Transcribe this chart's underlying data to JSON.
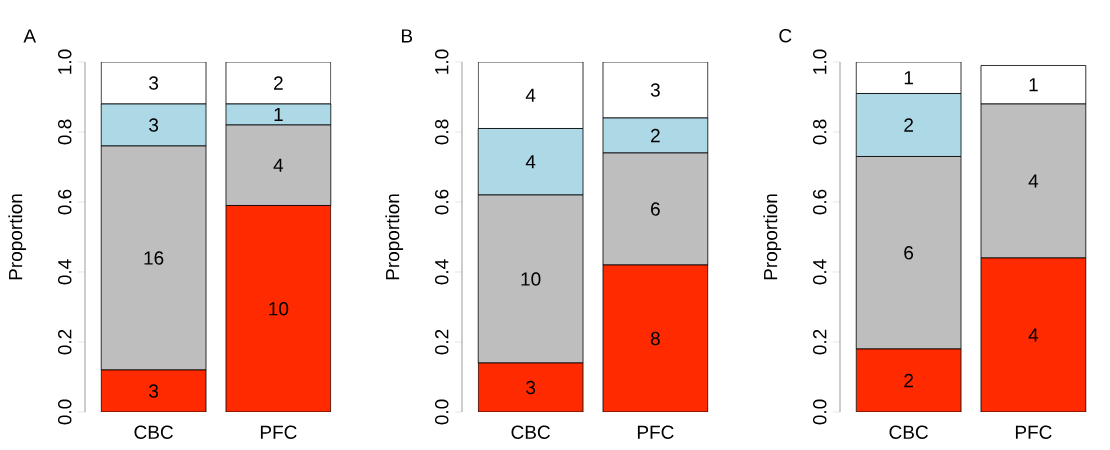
{
  "chart_data": [
    {
      "type": "bar",
      "title": "A",
      "ylabel": "Proportion",
      "categories": [
        "CBC",
        "PFC"
      ],
      "stacked": true,
      "ylim": [
        0,
        1
      ],
      "yticks": [
        {
          "value": 0,
          "label": "0.0"
        },
        {
          "value": 0.2,
          "label": "0.2"
        },
        {
          "value": 0.4,
          "label": "0.4"
        },
        {
          "value": 0.6,
          "label": "0.6"
        },
        {
          "value": 0.8,
          "label": "0.8"
        },
        {
          "value": 1,
          "label": "1.0"
        }
      ],
      "series": [
        {
          "color": "#ff2a00",
          "values": [
            0.12,
            0.59
          ]
        },
        {
          "color": "#bebebe",
          "values": [
            0.64,
            0.23
          ]
        },
        {
          "color": "#add8e6",
          "values": [
            0.12,
            0.06
          ]
        },
        {
          "color": "#ffffff",
          "values": [
            0.12,
            0.12
          ]
        }
      ],
      "annotations": [
        "3",
        "16",
        "3",
        "3",
        "10",
        "4",
        "1",
        "2"
      ]
    },
    {
      "type": "bar",
      "title": "B",
      "ylabel": "Proportion",
      "categories": [
        "CBC",
        "PFC"
      ],
      "stacked": true,
      "ylim": [
        0,
        1
      ],
      "yticks": [
        {
          "value": 0,
          "label": "0.0"
        },
        {
          "value": 0.2,
          "label": "0.2"
        },
        {
          "value": 0.4,
          "label": "0.4"
        },
        {
          "value": 0.6,
          "label": "0.6"
        },
        {
          "value": 0.8,
          "label": "0.8"
        },
        {
          "value": 1,
          "label": "1.0"
        }
      ],
      "series": [
        {
          "color": "#ff2a00",
          "values": [
            0.14,
            0.42
          ]
        },
        {
          "color": "#bebebe",
          "values": [
            0.48,
            0.32
          ]
        },
        {
          "color": "#add8e6",
          "values": [
            0.19,
            0.1
          ]
        },
        {
          "color": "#ffffff",
          "values": [
            0.19,
            0.16
          ]
        }
      ],
      "annotations": [
        "3",
        "10",
        "4",
        "4",
        "8",
        "6",
        "2",
        "3"
      ]
    },
    {
      "type": "bar",
      "title": "C",
      "ylabel": "Proportion",
      "categories": [
        "CBC",
        "PFC"
      ],
      "stacked": true,
      "ylim": [
        0,
        1
      ],
      "yticks": [
        {
          "value": 0,
          "label": "0.0"
        },
        {
          "value": 0.2,
          "label": "0.2"
        },
        {
          "value": 0.4,
          "label": "0.4"
        },
        {
          "value": 0.6,
          "label": "0.6"
        },
        {
          "value": 0.8,
          "label": "0.8"
        },
        {
          "value": 1,
          "label": "1.0"
        }
      ],
      "series": [
        {
          "color": "#ff2a00",
          "values": [
            0.18,
            0.44
          ]
        },
        {
          "color": "#bebebe",
          "values": [
            0.55,
            0.44
          ]
        },
        {
          "color": "#add8e6",
          "values": [
            0.18,
            0
          ]
        },
        {
          "color": "#ffffff",
          "values": [
            0.09,
            0.11
          ]
        }
      ],
      "annotations": [
        "2",
        "6",
        "2",
        "1",
        "4",
        "4",
        "1"
      ]
    }
  ]
}
